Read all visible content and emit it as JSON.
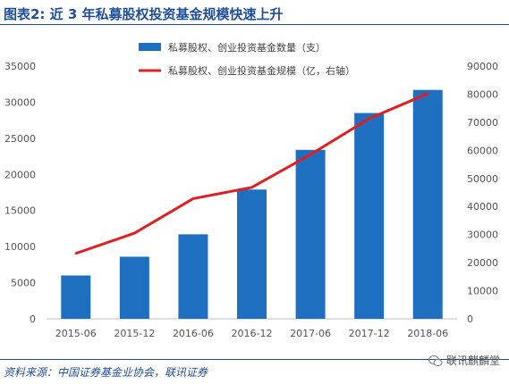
{
  "header": {
    "title": "图表2:  近 3 年私募股权投资基金规模快速上升"
  },
  "footer": {
    "source": "资料来源：中国证券基金业协会，联讯证券",
    "watermark": "联讯麒麟堂"
  },
  "colors": {
    "bar": "#1f6fc0",
    "line": "#e02020",
    "title": "#1f4e9c",
    "axis_text": "#555555"
  },
  "chart_data": {
    "type": "bar",
    "categories": [
      "2015-06",
      "2015-12",
      "2016-06",
      "2016-12",
      "2017-06",
      "2017-12",
      "2018-06"
    ],
    "series": [
      {
        "name": "私募股权、创业投资基金数量（支）",
        "type": "bar",
        "axis": "left",
        "values": [
          6000,
          8600,
          11700,
          17900,
          23400,
          28500,
          31700
        ]
      },
      {
        "name": "私募股权、创业投资基金规模（亿，右轴）",
        "type": "line",
        "axis": "right",
        "values": [
          23300,
          30500,
          42800,
          46800,
          58500,
          71300,
          80200
        ]
      }
    ],
    "left_axis": {
      "ylim": [
        0,
        35000
      ],
      "ticks": [
        "0",
        "5000",
        "10000",
        "15000",
        "20000",
        "25000",
        "30000",
        "35000"
      ]
    },
    "right_axis": {
      "ylim": [
        0,
        90000
      ],
      "ticks": [
        "0",
        "10000",
        "20000",
        "30000",
        "40000",
        "50000",
        "60000",
        "70000",
        "80000",
        "90000"
      ]
    },
    "legend": "top-center",
    "grid": false
  }
}
